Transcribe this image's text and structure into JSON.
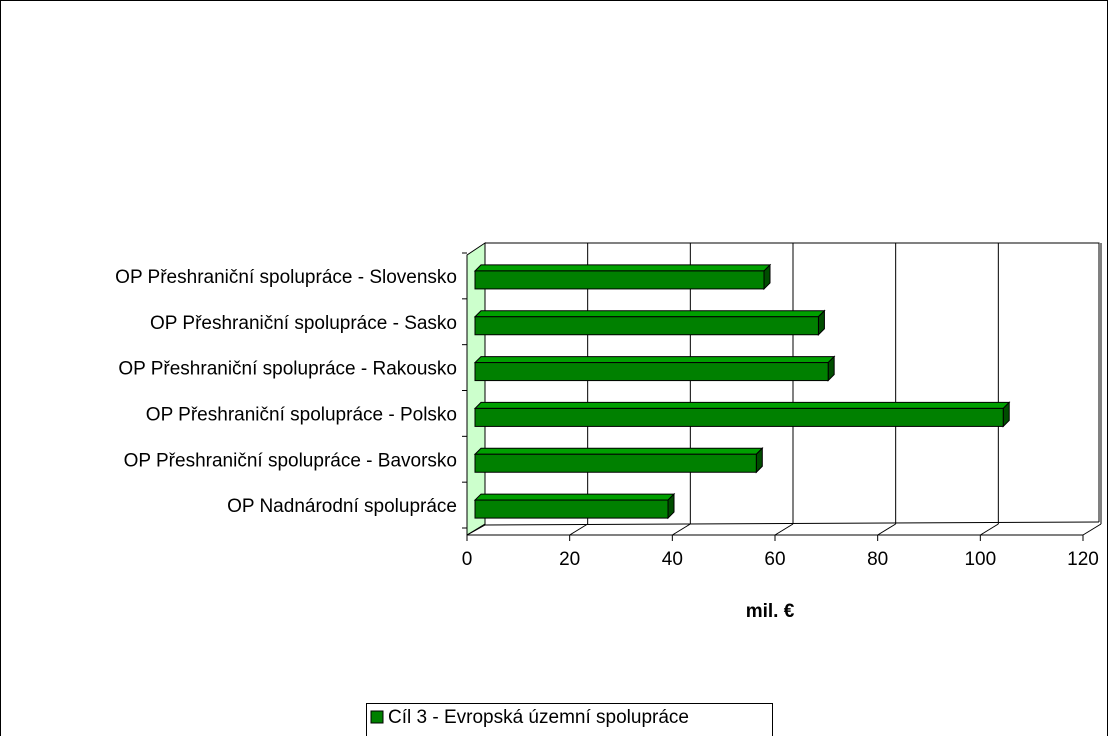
{
  "chart_data": {
    "type": "bar3d_horizontal",
    "categories": [
      "OP Přeshraniční spolupráce - Slovensko",
      "OP Přeshraniční spolupráce - Sasko",
      "OP Přeshraniční spolupráce - Rakousko",
      "OP Přeshraniční spolupráce - Polsko",
      "OP Přeshraniční spolupráce - Bavorsko",
      "OP Nadnárodní spolupráce"
    ],
    "series": [
      {
        "name": "Cíl 3 - Evropská územní spolupráce",
        "color": "#008000",
        "values": [
          56.3,
          66.9,
          68.8,
          102.9,
          54.8,
          37.6
        ]
      }
    ],
    "x_label": "mil. €",
    "xlim": [
      0,
      120
    ],
    "xticks": [
      0,
      20,
      40,
      60,
      80,
      100,
      120
    ],
    "grid": true,
    "legend": "bottom"
  }
}
